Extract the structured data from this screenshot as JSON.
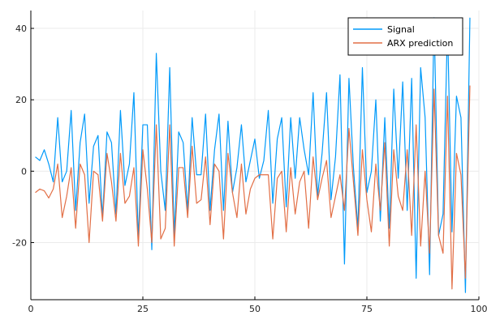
{
  "chart_data": {
    "type": "line",
    "title": "",
    "xlabel": "",
    "ylabel": "",
    "xlim": [
      0,
      100
    ],
    "ylim": [
      -36,
      45
    ],
    "xticks": [
      0,
      25,
      50,
      75,
      100
    ],
    "yticks": [
      -20,
      0,
      20,
      40
    ],
    "grid": true,
    "legend_position": "top-right",
    "x": [
      1,
      2,
      3,
      4,
      5,
      6,
      7,
      8,
      9,
      10,
      11,
      12,
      13,
      14,
      15,
      16,
      17,
      18,
      19,
      20,
      21,
      22,
      23,
      24,
      25,
      26,
      27,
      28,
      29,
      30,
      31,
      32,
      33,
      34,
      35,
      36,
      37,
      38,
      39,
      40,
      41,
      42,
      43,
      44,
      45,
      46,
      47,
      48,
      49,
      50,
      51,
      52,
      53,
      54,
      55,
      56,
      57,
      58,
      59,
      60,
      61,
      62,
      63,
      64,
      65,
      66,
      67,
      68,
      69,
      70,
      71,
      72,
      73,
      74,
      75,
      76,
      77,
      78,
      79,
      80,
      81,
      82,
      83,
      84,
      85,
      86,
      87,
      88,
      89,
      90,
      91,
      92,
      93,
      94,
      95,
      96,
      97,
      98
    ],
    "series": [
      {
        "name": "Signal",
        "color": "#009AFA",
        "values": [
          4,
          3,
          6,
          2,
          -3,
          15,
          -3,
          0,
          17,
          -11,
          8,
          16,
          -9,
          7,
          10,
          -13,
          11,
          8,
          -12,
          17,
          -4,
          2,
          22,
          -19,
          13,
          13,
          -22,
          33,
          0,
          -11,
          29,
          -18,
          11,
          8,
          -11,
          15,
          -1,
          -1,
          16,
          -11,
          6,
          16,
          -11,
          14,
          -6,
          1,
          13,
          -3,
          3,
          9,
          -2,
          3,
          17,
          -9,
          9,
          15,
          -10,
          15,
          -2,
          15,
          6,
          -1,
          22,
          -7,
          5,
          22,
          -8,
          4,
          27,
          -26,
          26,
          1,
          -16,
          29,
          -6,
          0,
          20,
          -14,
          15,
          -16,
          23,
          -2,
          25,
          -11,
          26,
          -30,
          29,
          15,
          -29,
          43,
          -18,
          -12,
          41,
          -17,
          21,
          15,
          -34,
          43
        ]
      },
      {
        "name": "ARX prediction",
        "color": "#E26F46",
        "values": [
          -6,
          -5,
          -5.5,
          -7.5,
          -5,
          2,
          -13,
          -7,
          1,
          -16,
          2,
          -1,
          -20,
          0,
          -1,
          -14,
          5,
          -3,
          -14,
          5,
          -9,
          -7,
          1,
          -21,
          6,
          -5,
          -20,
          13,
          -19,
          -16,
          13,
          -21,
          1,
          1,
          -13,
          7,
          -9,
          -8,
          4,
          -15,
          2,
          0,
          -19,
          5,
          -6,
          -13,
          2,
          -12,
          -5,
          -2,
          -1,
          -1,
          -1,
          -19,
          -2,
          0,
          -17,
          1,
          -12,
          -3,
          0,
          -16,
          4,
          -8,
          -2,
          3,
          -13,
          -7,
          -1,
          -11,
          12,
          -3,
          -18,
          6,
          -8,
          -17,
          2,
          -11,
          8,
          -21,
          6,
          -7,
          -11,
          6,
          -18,
          13,
          -21,
          0,
          -23,
          23,
          -18,
          -23,
          21,
          -33,
          5,
          -1,
          -30,
          24
        ]
      }
    ]
  }
}
